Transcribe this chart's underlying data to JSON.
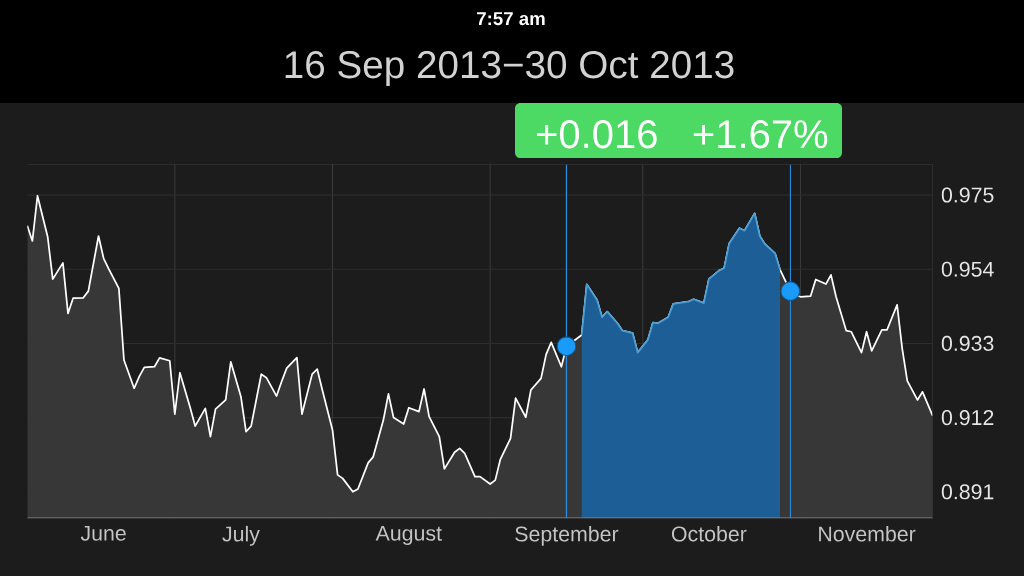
{
  "chart_data": {
    "type": "area",
    "title": "16 Sep 2013−30 Oct 2013",
    "annotations": [
      "7:57 am",
      "+0.016",
      "+1.67%"
    ],
    "x": [
      "2013-06-02",
      "2013-06-03",
      "2013-06-04",
      "2013-06-06",
      "2013-06-07",
      "2013-06-09",
      "2013-06-10",
      "2013-06-11",
      "2013-06-13",
      "2013-06-14",
      "2013-06-16",
      "2013-06-17",
      "2013-06-18",
      "2013-06-20",
      "2013-06-21",
      "2013-06-23",
      "2013-06-24",
      "2013-06-25",
      "2013-06-27",
      "2013-06-28",
      "2013-06-30",
      "2013-07-01",
      "2013-07-02",
      "2013-07-04",
      "2013-07-05",
      "2013-07-07",
      "2013-07-08",
      "2013-07-09",
      "2013-07-11",
      "2013-07-12",
      "2013-07-14",
      "2013-07-15",
      "2013-07-16",
      "2013-07-18",
      "2013-07-19",
      "2013-07-21",
      "2013-07-22",
      "2013-07-23",
      "2013-07-25",
      "2013-07-26",
      "2013-07-28",
      "2013-07-29",
      "2013-07-30",
      "2013-08-01",
      "2013-08-02",
      "2013-08-03",
      "2013-08-05",
      "2013-08-06",
      "2013-08-08",
      "2013-08-09",
      "2013-08-11",
      "2013-08-12",
      "2013-08-13",
      "2013-08-15",
      "2013-08-16",
      "2013-08-18",
      "2013-08-19",
      "2013-08-20",
      "2013-08-22",
      "2013-08-23",
      "2013-08-25",
      "2013-08-26",
      "2013-08-27",
      "2013-08-29",
      "2013-08-30",
      "2013-09-01",
      "2013-09-02",
      "2013-09-03",
      "2013-09-05",
      "2013-09-06",
      "2013-09-08",
      "2013-09-09",
      "2013-09-11",
      "2013-09-12",
      "2013-09-13",
      "2013-09-15",
      "2013-09-16",
      "2013-09-19",
      "2013-09-20",
      "2013-09-22",
      "2013-09-23",
      "2013-09-24",
      "2013-09-26",
      "2013-09-27",
      "2013-09-29",
      "2013-09-30",
      "2013-10-02",
      "2013-10-03",
      "2013-10-04",
      "2013-10-06",
      "2013-10-07",
      "2013-10-09",
      "2013-10-10",
      "2013-10-11",
      "2013-10-13",
      "2013-10-14",
      "2013-10-16",
      "2013-10-17",
      "2013-10-18",
      "2013-10-20",
      "2013-10-21",
      "2013-10-23",
      "2013-10-24",
      "2013-10-25",
      "2013-10-27",
      "2013-10-28",
      "2013-10-30",
      "2013-10-31",
      "2013-11-01",
      "2013-11-03",
      "2013-11-04",
      "2013-11-06",
      "2013-11-07",
      "2013-11-08",
      "2013-11-10",
      "2013-11-11",
      "2013-11-13",
      "2013-11-14",
      "2013-11-15",
      "2013-11-17",
      "2013-11-18",
      "2013-11-20",
      "2013-11-21",
      "2013-11-22",
      "2013-11-24",
      "2013-11-25",
      "2013-11-27"
    ],
    "series": [
      {
        "color": "#ffffff",
        "values": [
          0.9663,
          0.962,
          0.9748,
          0.9632,
          0.9512,
          0.9558,
          0.9415,
          0.9458,
          0.9459,
          0.9478,
          0.9634,
          0.9571,
          0.9541,
          0.9486,
          0.9283,
          0.9203,
          0.9236,
          0.9262,
          0.9264,
          0.9289,
          0.9281,
          0.913,
          0.9247,
          0.9149,
          0.9096,
          0.9146,
          0.9066,
          0.9144,
          0.917,
          0.9278,
          0.9179,
          0.908,
          0.9096,
          0.9243,
          0.9233,
          0.9181,
          0.9222,
          0.926,
          0.929,
          0.913,
          0.9243,
          0.9257,
          0.9198,
          0.9085,
          0.8958,
          0.8948,
          0.891,
          0.8918,
          0.8992,
          0.9009,
          0.9113,
          0.9187,
          0.912,
          0.9102,
          0.9148,
          0.9137,
          0.9201,
          0.9123,
          0.9066,
          0.8975,
          0.9022,
          0.9033,
          0.9019,
          0.8953,
          0.8953,
          0.8932,
          0.8943,
          0.9002,
          0.9061,
          0.9175,
          0.9121,
          0.9198,
          0.9231,
          0.9299,
          0.9333,
          0.9264,
          0.9322,
          0.9354,
          0.9497,
          0.9453,
          0.9404,
          0.942,
          0.9387,
          0.9366,
          0.9359,
          0.9304,
          0.934,
          0.9389,
          0.9387,
          0.9404,
          0.9442,
          0.9446,
          0.9448,
          0.9455,
          0.9444,
          0.9512,
          0.9536,
          0.9543,
          0.9613,
          0.9656,
          0.9649,
          0.9698,
          0.9634,
          0.9611,
          0.9585,
          0.9538,
          0.9478,
          0.9467,
          0.9462,
          0.9464,
          0.9511,
          0.9498,
          0.9524,
          0.9462,
          0.9366,
          0.9363,
          0.9304,
          0.9363,
          0.9309,
          0.9368,
          0.9368,
          0.9439,
          0.9316,
          0.9224,
          0.917,
          0.9193,
          0.9125
        ]
      },
      {
        "color": "#1d5e96",
        "x": [
          "2013-09-19",
          "2013-09-20",
          "2013-09-22",
          "2013-09-23",
          "2013-09-24",
          "2013-09-26",
          "2013-09-27",
          "2013-09-29",
          "2013-09-30",
          "2013-10-02",
          "2013-10-03",
          "2013-10-04",
          "2013-10-06",
          "2013-10-07",
          "2013-10-09",
          "2013-10-10",
          "2013-10-11",
          "2013-10-13",
          "2013-10-14",
          "2013-10-16",
          "2013-10-17",
          "2013-10-18",
          "2013-10-20",
          "2013-10-21",
          "2013-10-23",
          "2013-10-24",
          "2013-10-25",
          "2013-10-27",
          "2013-10-28"
        ],
        "values": [
          0.9354,
          0.9497,
          0.9453,
          0.9404,
          0.942,
          0.9387,
          0.9366,
          0.9359,
          0.9304,
          0.934,
          0.9389,
          0.9387,
          0.9404,
          0.9442,
          0.9446,
          0.9448,
          0.9455,
          0.9444,
          0.9512,
          0.9536,
          0.9543,
          0.9613,
          0.9656,
          0.9649,
          0.9698,
          0.9634,
          0.9611,
          0.9585,
          0.9538
        ]
      },
      {
        "type": "scatter",
        "color": "#1a9bfc",
        "marker": "circle",
        "x": [
          "2013-09-16",
          "2013-10-30"
        ],
        "values": [
          0.9322,
          0.9478
        ]
      }
    ],
    "xlim": [
      "2013-06-02",
      "2013-11-27"
    ],
    "xticks": [
      {
        "value": "2013-06-17",
        "label": "June"
      },
      {
        "value": "2013-07-01",
        "label": null
      },
      {
        "value": "2013-07-14",
        "label": "July"
      },
      {
        "value": "2013-08-01",
        "label": null
      },
      {
        "value": "2013-08-16",
        "label": "August"
      },
      {
        "value": "2013-09-01",
        "label": null
      },
      {
        "value": "2013-09-16",
        "label": "September"
      },
      {
        "value": "2013-10-01",
        "label": null
      },
      {
        "value": "2013-10-14",
        "label": "October"
      },
      {
        "value": "2013-11-01",
        "label": null
      },
      {
        "value": "2013-11-14",
        "label": "November"
      }
    ],
    "ylim": [
      0.8835,
      0.9837
    ],
    "yticks": [
      0.891,
      0.912,
      0.933,
      0.954,
      0.975
    ],
    "grid": true,
    "ref_lines": [
      {
        "axis": "x",
        "value": "2013-09-16",
        "color": "#2a8ee0"
      },
      {
        "axis": "x",
        "value": "2013-10-30",
        "color": "#2a8ee0"
      }
    ]
  }
}
